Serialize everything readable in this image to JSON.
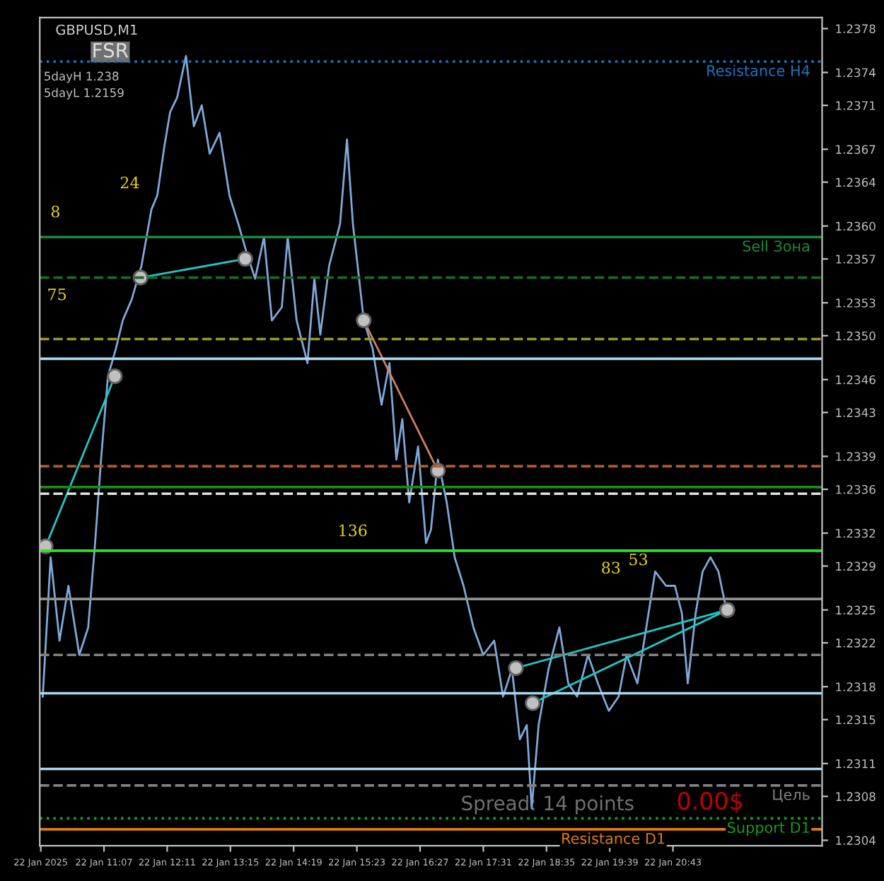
{
  "chart_data": {
    "type": "line",
    "annotations": [
      "GBPUSD,M1",
      "FSR",
      "5dayH 1.238",
      "5dayL 1.2159",
      "Spread: 14 points",
      "0.00$",
      "8",
      "24",
      "75",
      "136",
      "83",
      "53"
    ],
    "series": [
      {
        "color": "#7fa8d8",
        "marker": "none",
        "x": [
          "2025-01-22T10:05",
          "2025-01-22T10:13",
          "2025-01-22T10:22",
          "2025-01-22T10:31",
          "2025-01-22T10:42",
          "2025-01-22T10:51",
          "2025-01-22T10:58",
          "2025-01-22T11:04",
          "2025-01-22T11:11",
          "2025-01-22T11:19",
          "2025-01-22T11:26",
          "2025-01-22T11:35",
          "2025-01-22T11:45",
          "2025-01-22T11:55",
          "2025-01-22T12:01",
          "2025-01-22T12:08",
          "2025-01-22T12:14",
          "2025-01-22T12:21",
          "2025-01-22T12:30",
          "2025-01-22T12:38",
          "2025-01-22T12:46",
          "2025-01-22T12:54",
          "2025-01-22T13:04",
          "2025-01-22T13:14",
          "2025-01-22T13:23",
          "2025-01-22T13:31",
          "2025-01-22T13:40",
          "2025-01-22T13:49",
          "2025-01-22T13:57",
          "2025-01-22T14:07",
          "2025-01-22T14:13",
          "2025-01-22T14:22",
          "2025-01-22T14:33",
          "2025-01-22T14:40",
          "2025-01-22T14:46",
          "2025-01-22T14:55",
          "2025-01-22T15:06",
          "2025-01-22T15:13",
          "2025-01-22T15:19",
          "2025-01-22T15:30",
          "2025-01-22T15:39",
          "2025-01-22T15:48",
          "2025-01-22T15:56",
          "2025-01-22T16:03",
          "2025-01-22T16:09",
          "2025-01-22T16:16",
          "2025-01-22T16:25",
          "2025-01-22T16:33",
          "2025-01-22T16:38",
          "2025-01-22T16:45",
          "2025-01-22T16:54",
          "2025-01-22T17:02",
          "2025-01-22T17:11",
          "2025-01-22T17:21",
          "2025-01-22T17:31",
          "2025-01-22T17:42",
          "2025-01-22T17:51",
          "2025-01-22T18:00",
          "2025-01-22T18:08",
          "2025-01-22T18:15",
          "2025-01-22T18:20",
          "2025-01-22T18:27",
          "2025-01-22T18:37",
          "2025-01-22T18:48",
          "2025-01-22T18:57",
          "2025-01-22T19:06",
          "2025-01-22T19:17",
          "2025-01-22T19:27",
          "2025-01-22T19:38",
          "2025-01-22T19:48",
          "2025-01-22T19:56",
          "2025-01-22T20:07",
          "2025-01-22T20:16",
          "2025-01-22T20:25",
          "2025-01-22T20:36",
          "2025-01-22T20:45",
          "2025-01-22T20:52",
          "2025-01-22T20:58",
          "2025-01-22T21:06",
          "2025-01-22T21:13",
          "2025-01-22T21:21",
          "2025-01-22T21:29",
          "2025-01-22T21:35",
          "2025-01-22T21:39"
        ],
        "values": [
          1.23171,
          1.23298,
          1.23222,
          1.23272,
          1.23209,
          1.23234,
          1.23311,
          1.23387,
          1.23463,
          1.23488,
          1.23514,
          1.23533,
          1.23564,
          1.23615,
          1.23628,
          1.23672,
          1.23704,
          1.23717,
          1.23755,
          1.23691,
          1.2371,
          1.23666,
          1.23685,
          1.23628,
          1.23602,
          1.23577,
          1.23552,
          1.2359,
          1.23514,
          1.23526,
          1.2359,
          1.23514,
          1.23475,
          1.23552,
          1.23501,
          1.23564,
          1.23602,
          1.23679,
          1.23602,
          1.23514,
          1.23488,
          1.23437,
          1.23475,
          1.23387,
          1.23424,
          1.23348,
          1.23399,
          1.23311,
          1.23323,
          1.23387,
          1.23348,
          1.23298,
          1.23272,
          1.23234,
          1.23209,
          1.23222,
          1.23171,
          1.23196,
          1.23132,
          1.23145,
          1.23069,
          1.23145,
          1.23196,
          1.23234,
          1.23183,
          1.23171,
          1.23209,
          1.23183,
          1.23158,
          1.23171,
          1.23209,
          1.23183,
          1.23234,
          1.23285,
          1.23272,
          1.23272,
          1.23247,
          1.23183,
          1.23247,
          1.23285,
          1.23298,
          1.23285,
          1.23259,
          1.23247
        ]
      },
      {
        "color": "#20c8c8",
        "marker": "circle",
        "x": [
          "2025-01-22T10:08",
          "2025-01-22T11:18"
        ],
        "values": [
          1.23308,
          1.23463
        ]
      },
      {
        "color": "#20c8c8",
        "marker": "circle",
        "x": [
          "2025-01-22T11:44",
          "2025-01-22T13:30"
        ],
        "values": [
          1.23553,
          1.2357
        ]
      },
      {
        "color": "#d08060",
        "marker": "circle",
        "x": [
          "2025-01-22T15:30",
          "2025-01-22T16:45"
        ],
        "values": [
          1.23514,
          1.23377
        ]
      },
      {
        "color": "#20c8c8",
        "marker": "circle",
        "x": [
          "2025-01-22T18:04",
          "2025-01-22T21:38"
        ],
        "values": [
          1.23197,
          1.2325
        ]
      },
      {
        "color": "#20c8c8",
        "marker": "circle",
        "x": [
          "2025-01-22T18:21",
          "2025-01-22T21:38"
        ],
        "values": [
          1.23165,
          1.2325
        ]
      }
    ],
    "ref_lines": [
      {
        "axis": "y",
        "value": 1.2375,
        "label": "Resistance H4",
        "color": "#1e73be",
        "line_style": "dotted"
      },
      {
        "axis": "y",
        "value": 1.2359,
        "label": "Sell Зона",
        "color": "#1a8a3a",
        "line_style": "solid"
      },
      {
        "axis": "y",
        "value": 1.23553,
        "color": "#1a6a2a",
        "line_style": "dashed"
      },
      {
        "axis": "y",
        "value": 1.23497,
        "color": "#9a9a20",
        "line_style": "dashed"
      },
      {
        "axis": "y",
        "value": 1.23479,
        "color": "#a8d8f0",
        "line_style": "solid"
      },
      {
        "axis": "y",
        "value": 1.23381,
        "color": "#b05a30",
        "line_style": "dashed"
      },
      {
        "axis": "y",
        "value": 1.23362,
        "color": "#1a8a1a",
        "line_style": "solid"
      },
      {
        "axis": "y",
        "value": 1.23356,
        "color": "#e0e0e0",
        "line_style": "dashed"
      },
      {
        "axis": "y",
        "value": 1.23304,
        "color": "#30e030",
        "line_style": "solid"
      },
      {
        "axis": "y",
        "value": 1.2326,
        "color": "#909090",
        "line_style": "solid"
      },
      {
        "axis": "y",
        "value": 1.23209,
        "color": "#808080",
        "line_style": "dashed"
      },
      {
        "axis": "y",
        "value": 1.23174,
        "color": "#a8d8f0",
        "line_style": "solid"
      },
      {
        "axis": "y",
        "value": 1.23105,
        "color": "#a8d8f0",
        "line_style": "solid"
      },
      {
        "axis": "y",
        "value": 1.2309,
        "label": "Цель",
        "color": "#808080",
        "line_style": "dashed"
      },
      {
        "axis": "y",
        "value": 1.2306,
        "label": "Support D1",
        "color": "#1a9a1a",
        "line_style": "dotted"
      },
      {
        "axis": "y",
        "value": 1.2305,
        "label": "Resistance D1",
        "color": "#e07a10",
        "line_style": "solid"
      }
    ],
    "xlim": [
      "2025-01-22T10:02",
      "2025-01-22T23:14"
    ],
    "xticks": [
      {
        "value": "2025-01-22T10:03",
        "label": "22 Jan 2025"
      },
      {
        "value": "2025-01-22T11:07",
        "label": "22 Jan 11:07"
      },
      {
        "value": "2025-01-22T12:11",
        "label": "22 Jan 12:11"
      },
      {
        "value": "2025-01-22T13:15",
        "label": "22 Jan 13:15"
      },
      {
        "value": "2025-01-22T14:19",
        "label": "22 Jan 14:19"
      },
      {
        "value": "2025-01-22T15:23",
        "label": "22 Jan 15:23"
      },
      {
        "value": "2025-01-22T16:27",
        "label": "22 Jan 16:27"
      },
      {
        "value": "2025-01-22T17:31",
        "label": "22 Jan 17:31"
      },
      {
        "value": "2025-01-22T18:35",
        "label": "22 Jan 18:35"
      },
      {
        "value": "2025-01-22T19:39",
        "label": "22 Jan 19:39"
      },
      {
        "value": "2025-01-22T20:43",
        "label": "22 Jan 20:43"
      }
    ],
    "ylim": [
      1.23035,
      1.2379
    ],
    "yticks": [
      1.2378,
      1.2374,
      1.2371,
      1.2367,
      1.2364,
      {
        "value": 1.236,
        "label": "1.2360"
      },
      1.2357,
      1.2353,
      {
        "value": 1.235,
        "label": "1.2350"
      },
      1.2346,
      1.2343,
      1.2339,
      1.2336,
      1.2332,
      1.2329,
      1.2325,
      1.2322,
      1.2318,
      1.2315,
      1.2311,
      1.2308,
      1.2304
    ],
    "grid": false,
    "line_style": "solid"
  }
}
